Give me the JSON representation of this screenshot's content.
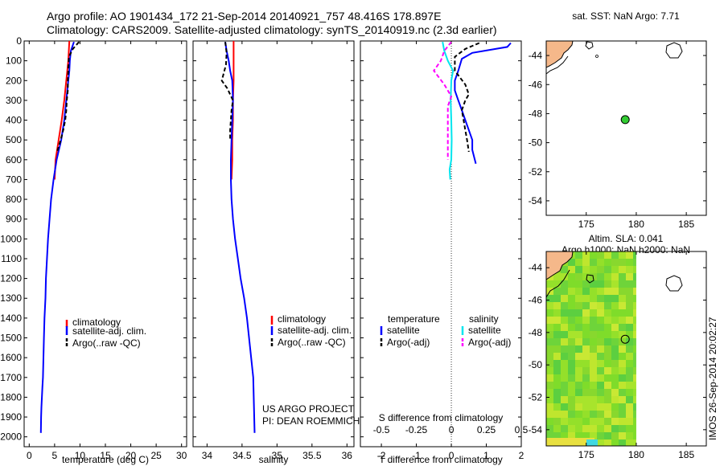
{
  "figure": {
    "title_line1": "Argo profile: AO 1901434_172 21-Sep-2014 20140921_757 48.416S 178.897E",
    "title_line2": "Climatology: CARS2009. Satellite-adjusted climatology: synTS_20140919.nc (2.3d earlier)",
    "timestamp": "IMOS 26-Sep-2014 20:02:27",
    "project_line1": "US ARGO PROJECT",
    "project_line2": "PI: DEAN ROEMMICH"
  },
  "colors": {
    "climatology": "#ff0000",
    "satellite": "#0000ff",
    "argo": "#000000",
    "satellite_salinity": "#00e5ee",
    "argo_salinity": "#ff00ff",
    "land": "#f5b88a",
    "argo_marker": "#33cc33"
  },
  "chart_data": [
    {
      "type": "line",
      "id": "temperature-profile",
      "xlabel": "temperature (deg C)",
      "xlim": [
        -1,
        31
      ],
      "xticks": [
        0,
        5,
        10,
        15,
        20,
        25,
        30
      ],
      "ylim": [
        2050,
        0
      ],
      "yticks": [
        0,
        100,
        200,
        300,
        400,
        500,
        600,
        700,
        800,
        900,
        1000,
        1100,
        1200,
        1300,
        1400,
        1500,
        1600,
        1700,
        1800,
        1900,
        2000
      ],
      "legend": [
        "climatology",
        "satellite-adj. clim.",
        "Argo(..raw -QC)"
      ],
      "series": [
        {
          "name": "climatology",
          "color": "#ff0000",
          "dash": "",
          "x": [
            7.9,
            7.7,
            7.3,
            6.9,
            6.4,
            5.8,
            5.2,
            5.0
          ],
          "y": [
            0,
            100,
            200,
            300,
            400,
            500,
            600,
            700
          ]
        },
        {
          "name": "satellite-adj. clim.",
          "color": "#0000ff",
          "dash": "",
          "x": [
            8.8,
            8.2,
            8.0,
            7.9,
            7.7,
            7.3,
            6.9,
            6.3,
            5.4,
            4.8,
            4.3,
            4.0,
            3.7,
            3.5,
            3.3,
            3.2,
            3.0,
            2.9,
            2.8,
            2.7,
            2.6,
            2.5,
            2.4,
            2.35,
            2.3
          ],
          "y": [
            5,
            50,
            100,
            150,
            200,
            300,
            400,
            500,
            600,
            700,
            800,
            900,
            1000,
            1100,
            1200,
            1300,
            1400,
            1500,
            1600,
            1700,
            1750,
            1800,
            1850,
            1900,
            1980
          ]
        },
        {
          "name": "Argo(..raw -QC)",
          "color": "#000000",
          "dash": "5,3",
          "x": [
            9.8,
            8.6,
            7.8,
            7.7,
            7.6,
            7.6,
            7.4,
            7.3,
            7.1,
            6.7,
            6.2,
            5.5
          ],
          "y": [
            5,
            40,
            80,
            150,
            200,
            250,
            300,
            350,
            400,
            450,
            500,
            560
          ]
        }
      ]
    },
    {
      "type": "line",
      "id": "salinity-profile",
      "xlabel": "salinity",
      "xlim": [
        33.8,
        36.1
      ],
      "xticks": [
        34,
        34.5,
        35,
        35.5,
        36
      ],
      "ylim": [
        2050,
        0
      ],
      "legend": [
        "climatology",
        "satellite-adj. clim.",
        "Argo(..raw -QC)"
      ],
      "series": [
        {
          "name": "climatology",
          "color": "#ff0000",
          "dash": "",
          "x": [
            34.38,
            34.38,
            34.38,
            34.37,
            34.37,
            34.36,
            34.36,
            34.35
          ],
          "y": [
            0,
            100,
            200,
            300,
            400,
            500,
            600,
            700
          ]
        },
        {
          "name": "satellite-adj. clim.",
          "color": "#0000ff",
          "dash": "",
          "x": [
            34.26,
            34.28,
            34.31,
            34.33,
            34.36,
            34.37,
            34.36,
            34.35,
            34.34,
            34.34,
            34.35,
            34.37,
            34.4,
            34.44,
            34.48,
            34.53,
            34.57,
            34.6,
            34.63,
            34.66,
            34.68
          ],
          "y": [
            5,
            50,
            100,
            150,
            200,
            300,
            400,
            500,
            600,
            700,
            800,
            900,
            1000,
            1100,
            1200,
            1300,
            1400,
            1500,
            1600,
            1700,
            1980
          ]
        },
        {
          "name": "Argo(..raw -QC)",
          "color": "#000000",
          "dash": "5,3",
          "x": [
            34.26,
            34.28,
            34.27,
            34.21,
            34.29,
            34.37,
            34.35,
            34.34,
            34.33,
            34.33
          ],
          "y": [
            5,
            60,
            120,
            200,
            240,
            300,
            350,
            400,
            450,
            500
          ]
        }
      ]
    },
    {
      "type": "line",
      "id": "difference-profile",
      "xlabel": "T difference from climatology",
      "secondary_xlabel": "S difference from climatology",
      "xlim": [
        -2.6,
        2.0
      ],
      "xticks": [
        -2,
        -1,
        0,
        1,
        2
      ],
      "secondary_xtick_labels": [
        "-0.5",
        "-0.25",
        "0",
        "0.25",
        "0.5"
      ],
      "secondary_xtick_positions": [
        -2,
        -1,
        0,
        1,
        2
      ],
      "ylim": [
        2050,
        0
      ],
      "legend_headers": [
        "temperature",
        "salinity"
      ],
      "legend": [
        "satellite",
        "Argo(-adj)",
        "satellite",
        "Argo(-adj)"
      ],
      "series": [
        {
          "name": "satellite",
          "color": "#0000ff",
          "dash": "",
          "x": [
            1.7,
            1.6,
            0.6,
            0.3,
            0.2,
            0.1,
            0.1,
            0.2,
            0.3,
            0.4,
            0.5,
            0.6,
            0.6,
            0.7
          ],
          "y": [
            10,
            30,
            60,
            90,
            150,
            200,
            250,
            300,
            350,
            400,
            450,
            500,
            550,
            620
          ]
        },
        {
          "name": "Argo(-adj)",
          "color": "#000000",
          "dash": "5,3",
          "x": [
            0.8,
            0.4,
            0.1,
            0.1,
            0.4,
            0.5,
            0.4,
            0.3,
            0.35,
            0.4,
            0.45,
            0.5
          ],
          "y": [
            10,
            40,
            80,
            150,
            220,
            270,
            300,
            350,
            400,
            450,
            500,
            560
          ]
        },
        {
          "name": "satellite",
          "color": "#00e5ee",
          "dash": "",
          "x": [
            -0.25,
            -0.2,
            -0.1,
            0.05,
            0.0,
            -0.02,
            0.0,
            0.01,
            0.0,
            -0.05,
            -0.03
          ],
          "y": [
            5,
            50,
            100,
            150,
            200,
            300,
            400,
            500,
            600,
            650,
            700
          ]
        },
        {
          "name": "Argo(-adj)",
          "color": "#ff00ff",
          "dash": "5,3",
          "x": [
            0.0,
            -0.2,
            -0.3,
            -0.5,
            -0.2,
            0.0,
            -0.1,
            -0.1,
            -0.1,
            -0.1,
            -0.1,
            -0.1
          ],
          "y": [
            5,
            50,
            100,
            150,
            220,
            280,
            330,
            400,
            450,
            500,
            550,
            600
          ]
        }
      ]
    },
    {
      "type": "map",
      "id": "sst-map",
      "title": "sat. SST: NaN Argo: 7.71",
      "xlim": [
        171,
        187
      ],
      "ylim": [
        -55,
        -43
      ],
      "xticks": [
        175,
        180,
        185
      ],
      "yticks": [
        -44,
        -46,
        -48,
        -50,
        -52,
        -54
      ],
      "argo_position": {
        "lon": 178.897,
        "lat": -48.416
      }
    },
    {
      "type": "map",
      "id": "sla-map",
      "title_line1": "Altim. SLA: 0.041",
      "title_line2": "Argo h1000: NaN h2000: NaN",
      "xlim": [
        171,
        187
      ],
      "ylim": [
        -55,
        -43
      ],
      "xticks": [
        175,
        180,
        185
      ],
      "yticks": [
        -44,
        -46,
        -48,
        -50,
        -52,
        -54
      ],
      "data_extent_lon": [
        171,
        180
      ],
      "argo_position": {
        "lon": 178.897,
        "lat": -48.416
      }
    }
  ]
}
